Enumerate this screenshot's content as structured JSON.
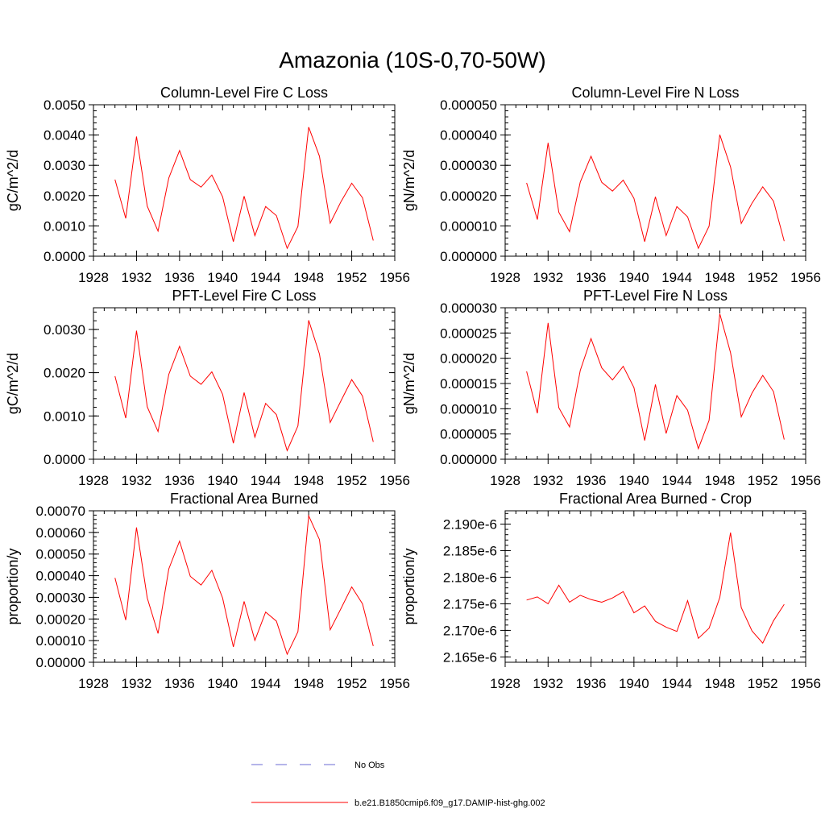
{
  "figure": {
    "title": "Amazonia (10S-0,70-50W)"
  },
  "legend": [
    {
      "label": "No Obs",
      "color": "#6b6bd6",
      "dash": true
    },
    {
      "label": "b.e21.B1850cmip6.f09_g17.DAMIP-hist-ghg.002",
      "color": "#ff0000",
      "dash": false
    }
  ],
  "chart_data": [
    {
      "type": "line",
      "title": "Column-Level Fire C Loss",
      "ylabel": "gC/m^2/d",
      "xlabel": "",
      "xlim": [
        1928,
        1956
      ],
      "ylim": [
        0,
        0.005
      ],
      "xticks": [
        "1928",
        "1932",
        "1936",
        "1940",
        "1944",
        "1948",
        "1952",
        "1956"
      ],
      "yticks": [
        "0.0000",
        "0.0010",
        "0.0020",
        "0.0030",
        "0.0040",
        "0.0050"
      ],
      "x": [
        1930,
        1931,
        1932,
        1933,
        1934,
        1935,
        1936,
        1937,
        1938,
        1939,
        1940,
        1941,
        1942,
        1943,
        1944,
        1945,
        1946,
        1947,
        1948,
        1949,
        1950,
        1951,
        1952,
        1953,
        1954
      ],
      "series": [
        {
          "name": "b.e21.B1850cmip6.f09_g17.DAMIP-hist-ghg.002",
          "color": "#ff0000",
          "values": [
            0.00253,
            0.00125,
            0.00395,
            0.00165,
            0.00083,
            0.00258,
            0.00349,
            0.00253,
            0.00228,
            0.00268,
            0.00196,
            0.00048,
            0.00198,
            0.00068,
            0.00164,
            0.00134,
            0.00026,
            0.00098,
            0.00426,
            0.0033,
            0.00109,
            0.0018,
            0.00241,
            0.00193,
            0.00052
          ]
        }
      ]
    },
    {
      "type": "line",
      "title": "Column-Level Fire N Loss",
      "ylabel": "gN/m^2/d",
      "xlabel": "",
      "xlim": [
        1928,
        1956
      ],
      "ylim": [
        0,
        5e-05
      ],
      "xticks": [
        "1928",
        "1932",
        "1936",
        "1940",
        "1944",
        "1948",
        "1952",
        "1956"
      ],
      "yticks": [
        "0.000000",
        "0.000010",
        "0.000020",
        "0.000030",
        "0.000040",
        "0.000050"
      ],
      "x": [
        1930,
        1931,
        1932,
        1933,
        1934,
        1935,
        1936,
        1937,
        1938,
        1939,
        1940,
        1941,
        1942,
        1943,
        1944,
        1945,
        1946,
        1947,
        1948,
        1949,
        1950,
        1951,
        1952,
        1953,
        1954
      ],
      "series": [
        {
          "name": "b.e21.B1850cmip6.f09_g17.DAMIP-hist-ghg.002",
          "color": "#ff0000",
          "values": [
            2.42e-05,
            1.21e-05,
            3.74e-05,
            1.45e-05,
            8.1e-06,
            2.45e-05,
            3.3e-05,
            2.44e-05,
            2.15e-05,
            2.51e-05,
            1.91e-05,
            4.8e-06,
            1.96e-05,
            6.8e-06,
            1.64e-05,
            1.3e-05,
            2.6e-06,
            9.9e-06,
            4.01e-05,
            2.95e-05,
            1.08e-05,
            1.75e-05,
            2.29e-05,
            1.82e-05,
            5e-06
          ]
        }
      ]
    },
    {
      "type": "line",
      "title": "PFT-Level Fire C Loss",
      "ylabel": "gC/m^2/d",
      "xlabel": "",
      "xlim": [
        1928,
        1956
      ],
      "ylim": [
        0,
        0.0035
      ],
      "xticks": [
        "1928",
        "1932",
        "1936",
        "1940",
        "1944",
        "1948",
        "1952",
        "1956"
      ],
      "yticks": [
        "0.0000",
        "0.0010",
        "0.0020",
        "0.0030"
      ],
      "ytick_values": [
        0,
        0.001,
        0.002,
        0.003
      ],
      "x": [
        1930,
        1931,
        1932,
        1933,
        1934,
        1935,
        1936,
        1937,
        1938,
        1939,
        1940,
        1941,
        1942,
        1943,
        1944,
        1945,
        1946,
        1947,
        1948,
        1949,
        1950,
        1951,
        1952,
        1953,
        1954
      ],
      "series": [
        {
          "name": "b.e21.B1850cmip6.f09_g17.DAMIP-hist-ghg.002",
          "color": "#ff0000",
          "values": [
            0.00192,
            0.00095,
            0.00297,
            0.00121,
            0.00064,
            0.00196,
            0.00261,
            0.00192,
            0.00173,
            0.00202,
            0.0015,
            0.00037,
            0.00154,
            0.00051,
            0.00129,
            0.00103,
            0.0002,
            0.00077,
            0.00321,
            0.00243,
            0.00085,
            0.00135,
            0.00184,
            0.00146,
            0.0004
          ]
        }
      ]
    },
    {
      "type": "line",
      "title": "PFT-Level Fire N Loss",
      "ylabel": "gN/m^2/d",
      "xlabel": "",
      "xlim": [
        1928,
        1956
      ],
      "ylim": [
        0,
        3e-05
      ],
      "xticks": [
        "1928",
        "1932",
        "1936",
        "1940",
        "1944",
        "1948",
        "1952",
        "1956"
      ],
      "yticks": [
        "0.000000",
        "0.000005",
        "0.000010",
        "0.000015",
        "0.000020",
        "0.000025",
        "0.000030"
      ],
      "x": [
        1930,
        1931,
        1932,
        1933,
        1934,
        1935,
        1936,
        1937,
        1938,
        1939,
        1940,
        1941,
        1942,
        1943,
        1944,
        1945,
        1946,
        1947,
        1948,
        1949,
        1950,
        1951,
        1952,
        1953,
        1954
      ],
      "series": [
        {
          "name": "b.e21.B1850cmip6.f09_g17.DAMIP-hist-ghg.002",
          "color": "#ff0000",
          "values": [
            1.74e-05,
            9.1e-06,
            2.7e-05,
            1.02e-05,
            6.4e-06,
            1.76e-05,
            2.39e-05,
            1.81e-05,
            1.57e-05,
            1.84e-05,
            1.42e-05,
            3.7e-06,
            1.48e-05,
            5.1e-06,
            1.26e-05,
            9.7e-06,
            2.1e-06,
            7.7e-06,
            2.88e-05,
            2.11e-05,
            8.4e-06,
            1.31e-05,
            1.66e-05,
            1.34e-05,
            3.9e-06
          ]
        }
      ]
    },
    {
      "type": "line",
      "title": "Fractional Area Burned",
      "ylabel": "proportion/y",
      "xlabel": "",
      "xlim": [
        1928,
        1956
      ],
      "ylim": [
        0,
        0.0007
      ],
      "xticks": [
        "1928",
        "1932",
        "1936",
        "1940",
        "1944",
        "1948",
        "1952",
        "1956"
      ],
      "yticks": [
        "0.00000",
        "0.00010",
        "0.00020",
        "0.00030",
        "0.00040",
        "0.00050",
        "0.00060",
        "0.00070"
      ],
      "x": [
        1930,
        1931,
        1932,
        1933,
        1934,
        1935,
        1936,
        1937,
        1938,
        1939,
        1940,
        1941,
        1942,
        1943,
        1944,
        1945,
        1946,
        1947,
        1948,
        1949,
        1950,
        1951,
        1952,
        1953,
        1954
      ],
      "series": [
        {
          "name": "b.e21.B1850cmip6.f09_g17.DAMIP-hist-ghg.002",
          "color": "#ff0000",
          "values": [
            0.00039,
            0.000195,
            0.000623,
            0.000297,
            0.000133,
            0.000431,
            0.00056,
            0.000397,
            0.000357,
            0.000425,
            0.000297,
            7.1e-05,
            0.000281,
            0.000101,
            0.000232,
            0.00019,
            3.7e-05,
            0.000141,
            0.000677,
            0.000567,
            0.00015,
            0.000248,
            0.000348,
            0.00027,
            7.5e-05
          ]
        }
      ]
    },
    {
      "type": "line",
      "title": "Fractional Area Burned - Crop",
      "ylabel": "proportion/y",
      "xlabel": "",
      "xlim": [
        1928,
        1956
      ],
      "ylim": [
        2.164e-06,
        2.1925e-06
      ],
      "xticks": [
        "1928",
        "1932",
        "1936",
        "1940",
        "1944",
        "1948",
        "1952",
        "1956"
      ],
      "yticks": [
        "2.165e-6",
        "2.170e-6",
        "2.175e-6",
        "2.180e-6",
        "2.185e-6",
        "2.190e-6"
      ],
      "ytick_values": [
        2.165e-06,
        2.17e-06,
        2.175e-06,
        2.18e-06,
        2.185e-06,
        2.19e-06
      ],
      "x": [
        1930,
        1931,
        1932,
        1933,
        1934,
        1935,
        1936,
        1937,
        1938,
        1939,
        1940,
        1941,
        1942,
        1943,
        1944,
        1945,
        1946,
        1947,
        1948,
        1949,
        1950,
        1951,
        1952,
        1953,
        1954
      ],
      "series": [
        {
          "name": "b.e21.B1850cmip6.f09_g17.DAMIP-hist-ghg.002",
          "color": "#ff0000",
          "values": [
            2.1757e-06,
            2.1763e-06,
            2.175e-06,
            2.1785e-06,
            2.1753e-06,
            2.1766e-06,
            2.1758e-06,
            2.1753e-06,
            2.1761e-06,
            2.1773e-06,
            2.1733e-06,
            2.1746e-06,
            2.1717e-06,
            2.1706e-06,
            2.1698e-06,
            2.1756e-06,
            2.1685e-06,
            2.1704e-06,
            2.1762e-06,
            2.1884e-06,
            2.1743e-06,
            2.1699e-06,
            2.1676e-06,
            2.1718e-06,
            2.1749e-06
          ]
        }
      ]
    }
  ]
}
